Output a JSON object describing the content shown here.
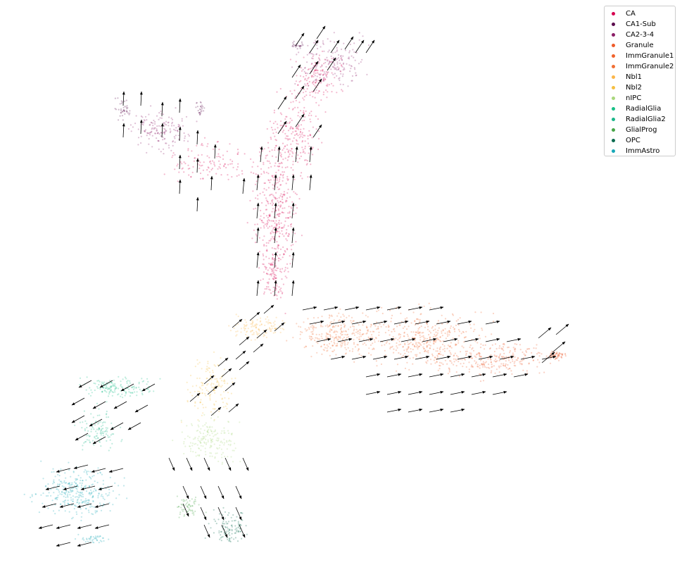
{
  "chart_data": {
    "type": "scatter",
    "title": "",
    "xlabel": "",
    "ylabel": "",
    "axes_visible": false,
    "grid": false,
    "legend_position": "top-right",
    "series": [
      {
        "name": "CA",
        "color": "#d6004f"
      },
      {
        "name": "CA1-Sub",
        "color": "#5a0c4d"
      },
      {
        "name": "CA2-3-4",
        "color": "#8b1e67"
      },
      {
        "name": "Granule",
        "color": "#ee5b2a"
      },
      {
        "name": "ImmGranule1",
        "color": "#f0632c"
      },
      {
        "name": "ImmGranule2",
        "color": "#f06f35"
      },
      {
        "name": "Nbl1",
        "color": "#fbb64a"
      },
      {
        "name": "Nbl2",
        "color": "#f5bf42"
      },
      {
        "name": "nIPC",
        "color": "#a9d77d"
      },
      {
        "name": "RadialGlia",
        "color": "#18c087"
      },
      {
        "name": "RadialGlia2",
        "color": "#1ab68a"
      },
      {
        "name": "GlialProg",
        "color": "#48a548"
      },
      {
        "name": "OPC",
        "color": "#0b6b4f"
      },
      {
        "name": "ImmAstro",
        "color": "#18a8b8"
      }
    ]
  }
}
